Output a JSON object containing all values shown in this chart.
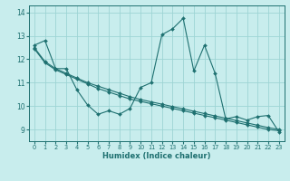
{
  "xlabel": "Humidex (Indice chaleur)",
  "xlim": [
    -0.5,
    23.5
  ],
  "ylim": [
    8.5,
    14.3
  ],
  "xticks": [
    0,
    1,
    2,
    3,
    4,
    5,
    6,
    7,
    8,
    9,
    10,
    11,
    12,
    13,
    14,
    15,
    16,
    17,
    18,
    19,
    20,
    21,
    22,
    23
  ],
  "yticks": [
    9,
    10,
    11,
    12,
    13,
    14
  ],
  "background_color": "#c8eded",
  "grid_color": "#9ed4d4",
  "line_color": "#1e7070",
  "line1_x": [
    0,
    1,
    2,
    3,
    4,
    5,
    6,
    7,
    8,
    9,
    10,
    11,
    12,
    13,
    14,
    15,
    16,
    17,
    18,
    19,
    20,
    21,
    22,
    23
  ],
  "line1_y": [
    12.6,
    12.8,
    11.6,
    11.6,
    10.7,
    10.05,
    9.65,
    9.8,
    9.65,
    9.9,
    10.8,
    11.0,
    13.05,
    13.3,
    13.75,
    11.5,
    12.6,
    11.4,
    9.45,
    9.55,
    9.4,
    9.55,
    9.6,
    8.9
  ],
  "line2_x": [
    0,
    1,
    2,
    3,
    4,
    5,
    6,
    7,
    8,
    9,
    10,
    11,
    12,
    13,
    14,
    15,
    16,
    17,
    18,
    19,
    20,
    21,
    22,
    23
  ],
  "line2_y": [
    12.45,
    11.85,
    11.55,
    11.35,
    11.15,
    10.95,
    10.75,
    10.6,
    10.45,
    10.3,
    10.2,
    10.1,
    10.0,
    9.9,
    9.8,
    9.7,
    9.6,
    9.5,
    9.4,
    9.3,
    9.2,
    9.1,
    9.0,
    8.95
  ],
  "line3_x": [
    0,
    1,
    2,
    3,
    4,
    5,
    6,
    7,
    8,
    9,
    10,
    11,
    12,
    13,
    14,
    15,
    16,
    17,
    18,
    19,
    20,
    21,
    22,
    23
  ],
  "line3_y": [
    12.5,
    11.9,
    11.6,
    11.4,
    11.2,
    11.0,
    10.85,
    10.7,
    10.55,
    10.4,
    10.28,
    10.18,
    10.08,
    9.98,
    9.88,
    9.78,
    9.68,
    9.58,
    9.48,
    9.38,
    9.28,
    9.18,
    9.08,
    9.0
  ]
}
